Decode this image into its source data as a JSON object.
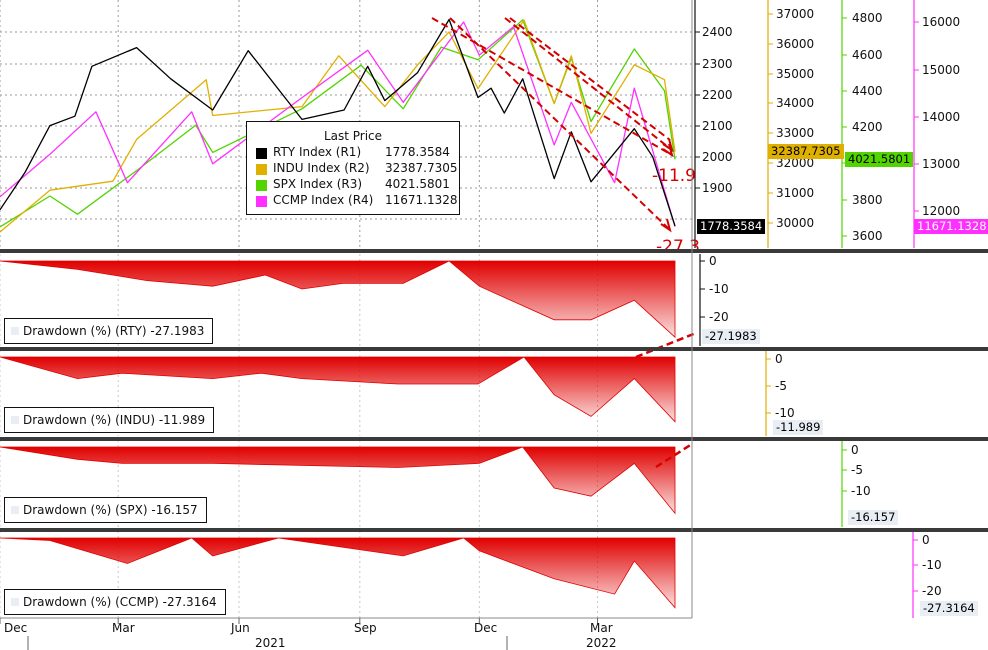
{
  "legend": {
    "title": "Last Price",
    "items": [
      {
        "name": "RTY Index  (R1)",
        "value": "1778.3584",
        "color": "#000000"
      },
      {
        "name": "INDU Index  (R2)",
        "value": "32387.7305",
        "color": "#e0b000"
      },
      {
        "name": "SPX Index  (R3)",
        "value": "4021.5801",
        "color": "#52d400"
      },
      {
        "name": "CCMP Index  (R4)",
        "value": "11671.1328",
        "color": "#ff30ff"
      }
    ]
  },
  "last_tags": {
    "rty": "1778.3584",
    "indu": "32387.7305",
    "spx": "4021.5801",
    "ccmp": "11671.1328"
  },
  "annotations": {
    "a1": "-11.9",
    "a2": "-27.3"
  },
  "drawdown_panels": [
    {
      "label": "Drawdown (%) (RTY) -27.1983",
      "tag": "-27.1983"
    },
    {
      "label": "Drawdown (%) (INDU) -11.989",
      "tag": "-11.989"
    },
    {
      "label": "Drawdown (%) (SPX) -16.157",
      "tag": "-16.157"
    },
    {
      "label": "Drawdown (%) (CCMP) -27.3164",
      "tag": "-27.3164"
    }
  ],
  "x_axis": {
    "months": [
      "Dec",
      "Mar",
      "Jun",
      "Sep",
      "Dec",
      "Mar"
    ],
    "years": [
      "2021",
      "2022"
    ]
  },
  "colors": {
    "rty": "#000000",
    "indu": "#e0b000",
    "spx": "#52d400",
    "ccmp": "#ff30ff",
    "drawdown": "#e00000",
    "trend": "#d40000"
  },
  "chart_data": {
    "type": "line",
    "x_range": [
      "2020-12-01",
      "2022-04-29"
    ],
    "grid": true,
    "top_panel": {
      "axes": {
        "R1": {
          "ticks": [
            1900,
            2000,
            2100,
            2200,
            2300,
            2400
          ],
          "range": [
            1740,
            2480
          ]
        },
        "R2": {
          "ticks": [
            30000,
            31000,
            32000,
            33000,
            34000,
            35000,
            36000,
            37000
          ],
          "range": [
            29700,
            37200
          ]
        },
        "R3": {
          "ticks": [
            3600,
            3800,
            4000,
            4200,
            4400,
            4600,
            4800
          ],
          "range": [
            3550,
            4900
          ]
        },
        "R4": {
          "ticks": [
            12000,
            13000,
            14000,
            15000,
            16000
          ],
          "range": [
            11400,
            16600
          ]
        }
      },
      "series": [
        {
          "name": "RTY Index",
          "axis": "R1",
          "points": [
            [
              "2020-12-01",
              1830
            ],
            [
              "2020-12-20",
              1950
            ],
            [
              "2021-01-08",
              2100
            ],
            [
              "2021-01-27",
              2130
            ],
            [
              "2021-02-09",
              2290
            ],
            [
              "2021-03-15",
              2350
            ],
            [
              "2021-04-10",
              2250
            ],
            [
              "2021-05-12",
              2150
            ],
            [
              "2021-06-08",
              2340
            ],
            [
              "2021-07-19",
              2120
            ],
            [
              "2021-08-20",
              2150
            ],
            [
              "2021-09-07",
              2290
            ],
            [
              "2021-09-20",
              2180
            ],
            [
              "2021-10-15",
              2270
            ],
            [
              "2021-11-08",
              2440
            ],
            [
              "2021-11-30",
              2190
            ],
            [
              "2021-12-10",
              2220
            ],
            [
              "2021-12-20",
              2140
            ],
            [
              "2022-01-03",
              2250
            ],
            [
              "2022-01-27",
              1930
            ],
            [
              "2022-02-09",
              2080
            ],
            [
              "2022-02-24",
              1920
            ],
            [
              "2022-03-29",
              2090
            ],
            [
              "2022-04-12",
              2000
            ],
            [
              "2022-04-29",
              1778.3584
            ]
          ]
        },
        {
          "name": "INDU Index",
          "axis": "R2",
          "points": [
            [
              "2020-12-01",
              29700
            ],
            [
              "2021-01-08",
              31100
            ],
            [
              "2021-02-25",
              31400
            ],
            [
              "2021-03-15",
              32800
            ],
            [
              "2021-05-07",
              34800
            ],
            [
              "2021-05-12",
              33600
            ],
            [
              "2021-07-19",
              33900
            ],
            [
              "2021-08-16",
              35600
            ],
            [
              "2021-09-20",
              33900
            ],
            [
              "2021-10-15",
              35300
            ],
            [
              "2021-11-08",
              36400
            ],
            [
              "2021-11-30",
              34500
            ],
            [
              "2022-01-04",
              36800
            ],
            [
              "2022-01-27",
              34000
            ],
            [
              "2022-02-09",
              35600
            ],
            [
              "2022-02-24",
              33000
            ],
            [
              "2022-03-29",
              35300
            ],
            [
              "2022-04-21",
              34800
            ],
            [
              "2022-04-29",
              32387.7305
            ]
          ]
        },
        {
          "name": "SPX Index",
          "axis": "R3",
          "points": [
            [
              "2020-12-01",
              3650
            ],
            [
              "2021-01-08",
              3820
            ],
            [
              "2021-01-29",
              3720
            ],
            [
              "2021-03-15",
              3960
            ],
            [
              "2021-04-29",
              4210
            ],
            [
              "2021-05-12",
              4060
            ],
            [
              "2021-07-19",
              4300
            ],
            [
              "2021-09-02",
              4540
            ],
            [
              "2021-10-04",
              4300
            ],
            [
              "2021-11-02",
              4640
            ],
            [
              "2021-11-30",
              4570
            ],
            [
              "2022-01-03",
              4790
            ],
            [
              "2022-01-27",
              4330
            ],
            [
              "2022-02-09",
              4580
            ],
            [
              "2022-02-24",
              4230
            ],
            [
              "2022-03-29",
              4630
            ],
            [
              "2022-04-21",
              4400
            ],
            [
              "2022-04-29",
              4021.5801
            ]
          ]
        },
        {
          "name": "CCMP Index",
          "axis": "R4",
          "points": [
            [
              "2020-12-01",
              12300
            ],
            [
              "2021-01-08",
              13200
            ],
            [
              "2021-02-12",
              14100
            ],
            [
              "2021-03-08",
              12600
            ],
            [
              "2021-04-26",
              14100
            ],
            [
              "2021-05-12",
              13000
            ],
            [
              "2021-07-19",
              14400
            ],
            [
              "2021-09-07",
              15400
            ],
            [
              "2021-10-04",
              14300
            ],
            [
              "2021-11-19",
              16000
            ],
            [
              "2021-12-01",
              15300
            ],
            [
              "2021-12-27",
              15900
            ],
            [
              "2022-01-27",
              13400
            ],
            [
              "2022-02-09",
              14300
            ],
            [
              "2022-03-14",
              12600
            ],
            [
              "2022-03-29",
              14600
            ],
            [
              "2022-04-29",
              11671.1328
            ]
          ]
        }
      ]
    },
    "drawdown_series": [
      {
        "name": "Drawdown (%) (RTY)",
        "ticks": [
          0,
          -10,
          -20
        ],
        "last": -27.1983,
        "points": [
          [
            "2020-12-01",
            0
          ],
          [
            "2021-01-29",
            -3
          ],
          [
            "2021-03-23",
            -7
          ],
          [
            "2021-05-12",
            -9
          ],
          [
            "2021-06-21",
            -5
          ],
          [
            "2021-07-19",
            -10
          ],
          [
            "2021-08-19",
            -8
          ],
          [
            "2021-10-04",
            -8
          ],
          [
            "2021-11-08",
            0
          ],
          [
            "2021-12-01",
            -9
          ],
          [
            "2022-01-27",
            -21
          ],
          [
            "2022-02-24",
            -21
          ],
          [
            "2022-03-29",
            -14
          ],
          [
            "2022-04-29",
            -27.1983
          ]
        ]
      },
      {
        "name": "Drawdown (%) (INDU)",
        "ticks": [
          0,
          -5,
          -10
        ],
        "last": -11.989,
        "points": [
          [
            "2020-12-01",
            0
          ],
          [
            "2021-01-29",
            -4
          ],
          [
            "2021-03-04",
            -3
          ],
          [
            "2021-05-12",
            -4
          ],
          [
            "2021-06-18",
            -3
          ],
          [
            "2021-07-19",
            -4
          ],
          [
            "2021-09-30",
            -5
          ],
          [
            "2021-11-30",
            -5
          ],
          [
            "2022-01-04",
            0
          ],
          [
            "2022-01-27",
            -7
          ],
          [
            "2022-02-24",
            -11
          ],
          [
            "2022-03-29",
            -4
          ],
          [
            "2022-04-29",
            -11.989
          ]
        ]
      },
      {
        "name": "Drawdown (%) (SPX)",
        "ticks": [
          0,
          -5,
          -10
        ],
        "last": -16.157,
        "points": [
          [
            "2020-12-01",
            0
          ],
          [
            "2021-01-29",
            -3
          ],
          [
            "2021-03-04",
            -4
          ],
          [
            "2021-05-12",
            -4
          ],
          [
            "2021-09-30",
            -5
          ],
          [
            "2021-12-01",
            -4
          ],
          [
            "2022-01-03",
            0
          ],
          [
            "2022-01-27",
            -10
          ],
          [
            "2022-02-24",
            -12
          ],
          [
            "2022-03-29",
            -4
          ],
          [
            "2022-04-29",
            -16.157
          ]
        ]
      },
      {
        "name": "Drawdown (%) (CCMP)",
        "ticks": [
          0,
          -10,
          -20
        ],
        "last": -27.3164,
        "points": [
          [
            "2020-12-01",
            0
          ],
          [
            "2021-01-08",
            -1
          ],
          [
            "2021-03-08",
            -10
          ],
          [
            "2021-04-26",
            0
          ],
          [
            "2021-05-12",
            -7
          ],
          [
            "2021-07-01",
            0
          ],
          [
            "2021-10-04",
            -7
          ],
          [
            "2021-11-19",
            0
          ],
          [
            "2021-12-01",
            -5
          ],
          [
            "2022-01-27",
            -16
          ],
          [
            "2022-03-14",
            -22
          ],
          [
            "2022-03-29",
            -9
          ],
          [
            "2022-04-29",
            -27.3164
          ]
        ]
      }
    ]
  }
}
